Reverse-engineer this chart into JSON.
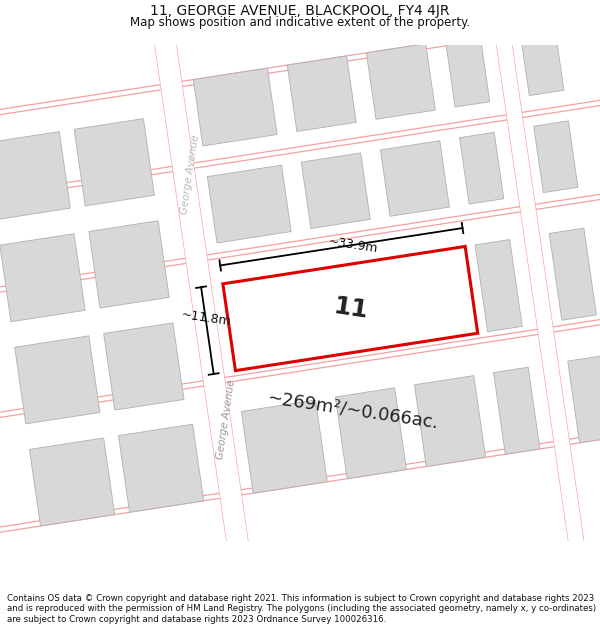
{
  "title": "11, GEORGE AVENUE, BLACKPOOL, FY4 4JR",
  "subtitle": "Map shows position and indicative extent of the property.",
  "footer": "Contains OS data © Crown copyright and database right 2021. This information is subject to Crown copyright and database rights 2023 and is reproduced with the permission of HM Land Registry. The polygons (including the associated geometry, namely x, y co-ordinates) are subject to Crown copyright and database rights 2023 Ordnance Survey 100026316.",
  "area_label": "~269m²/~0.066ac.",
  "width_label": "~33.9m",
  "height_label": "~11.8m",
  "property_number": "11",
  "map_bg": "#f5f5f5",
  "building_color": "#d8d8d8",
  "building_border": "#b0b0b0",
  "road_line_color": "#f4a0a0",
  "highlight_color": "#dd0000",
  "highlight_fill": "#ffffff",
  "street_label": "George Avenue",
  "fig_width": 6.0,
  "fig_height": 6.25,
  "title_fontsize": 10,
  "subtitle_fontsize": 8.5,
  "footer_fontsize": 6.2
}
